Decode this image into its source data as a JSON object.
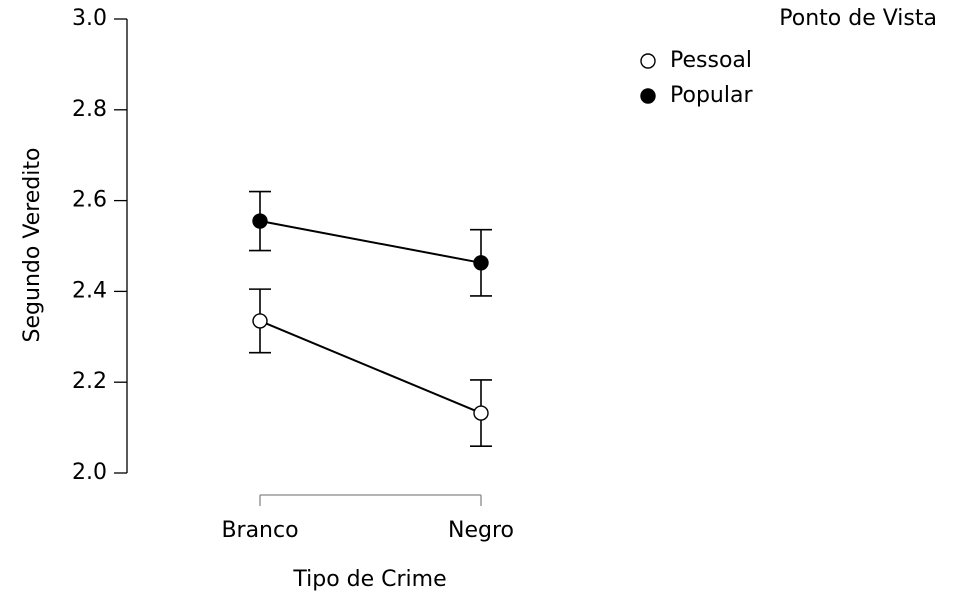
{
  "chart_data": {
    "type": "line",
    "categories": [
      "Branco",
      "Negro"
    ],
    "series": [
      {
        "name": "Pessoal",
        "color": "#ffffff",
        "values": [
          2.335,
          2.132
        ],
        "errors": [
          0.07,
          0.073
        ]
      },
      {
        "name": "Popular",
        "color": "#000000",
        "values": [
          2.555,
          2.463
        ],
        "errors": [
          0.065,
          0.073
        ]
      }
    ],
    "ylim": [
      2.0,
      3.0
    ],
    "yticks": [
      {
        "value": 2.0,
        "label": "2.0"
      },
      2.2,
      2.4,
      2.6,
      2.8,
      {
        "value": 3.0,
        "label": "3.0"
      }
    ],
    "xlabel": "Tipo de Crime",
    "ylabel": "Segundo Veredito",
    "legend_title": "Ponto de Vista",
    "legend": "top-right",
    "grid": false
  }
}
